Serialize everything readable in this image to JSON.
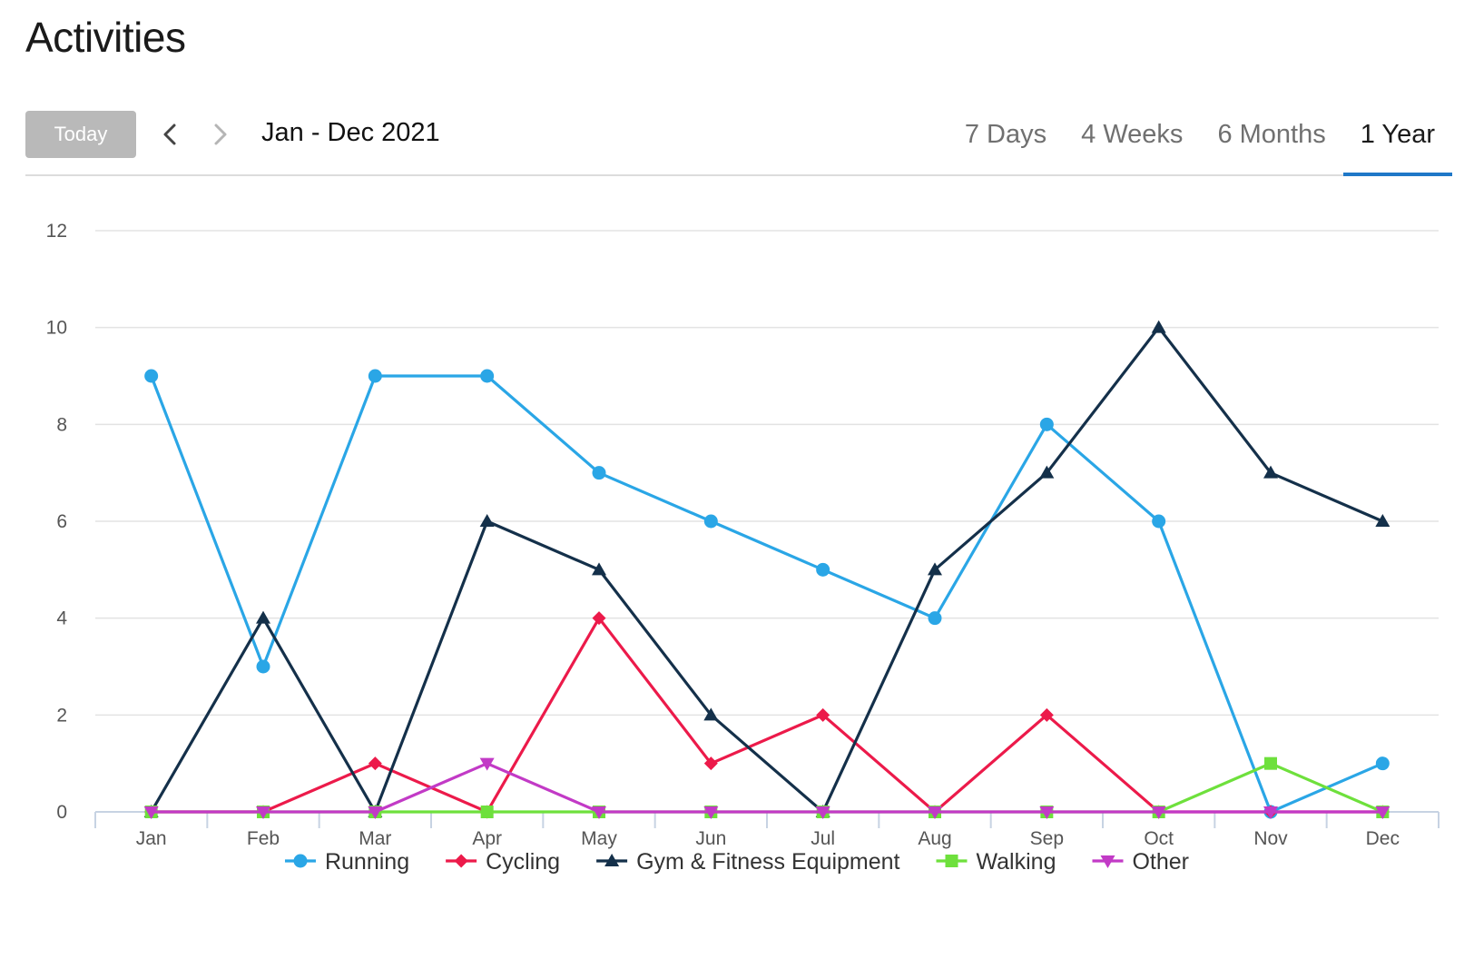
{
  "header": {
    "title": "Activities"
  },
  "toolbar": {
    "today_label": "Today",
    "date_range": "Jan - Dec 2021",
    "tabs": [
      {
        "label": "7 Days",
        "active": false
      },
      {
        "label": "4 Weeks",
        "active": false
      },
      {
        "label": "6 Months",
        "active": false
      },
      {
        "label": "1 Year",
        "active": true
      }
    ],
    "accent_color": "#1f78c8"
  },
  "chart_data": {
    "type": "line",
    "title": "",
    "xlabel": "",
    "ylabel": "",
    "categories": [
      "Jan",
      "Feb",
      "Mar",
      "Apr",
      "May",
      "Jun",
      "Jul",
      "Aug",
      "Sep",
      "Oct",
      "Nov",
      "Dec"
    ],
    "ylim": [
      0,
      12
    ],
    "yticks": [
      0,
      2,
      4,
      6,
      8,
      10,
      12
    ],
    "grid": true,
    "legend_position": "bottom",
    "series": [
      {
        "name": "Running",
        "color": "#2aa6e6",
        "marker": "circle",
        "values": [
          9,
          3,
          9,
          9,
          7,
          6,
          5,
          4,
          8,
          6,
          0,
          1
        ]
      },
      {
        "name": "Cycling",
        "color": "#ec1a4a",
        "marker": "diamond",
        "values": [
          0,
          0,
          1,
          0,
          4,
          1,
          2,
          0,
          2,
          0,
          0,
          0
        ]
      },
      {
        "name": "Gym & Fitness Equipment",
        "color": "#14304a",
        "marker": "triangle",
        "values": [
          0,
          4,
          0,
          6,
          5,
          2,
          0,
          5,
          7,
          10,
          7,
          6
        ]
      },
      {
        "name": "Walking",
        "color": "#6ee03c",
        "marker": "square",
        "values": [
          0,
          0,
          0,
          0,
          0,
          0,
          0,
          0,
          0,
          0,
          1,
          0
        ]
      },
      {
        "name": "Other",
        "color": "#c23ac6",
        "marker": "triangle-down",
        "values": [
          0,
          0,
          0,
          1,
          0,
          0,
          0,
          0,
          0,
          0,
          0,
          0
        ]
      }
    ]
  }
}
